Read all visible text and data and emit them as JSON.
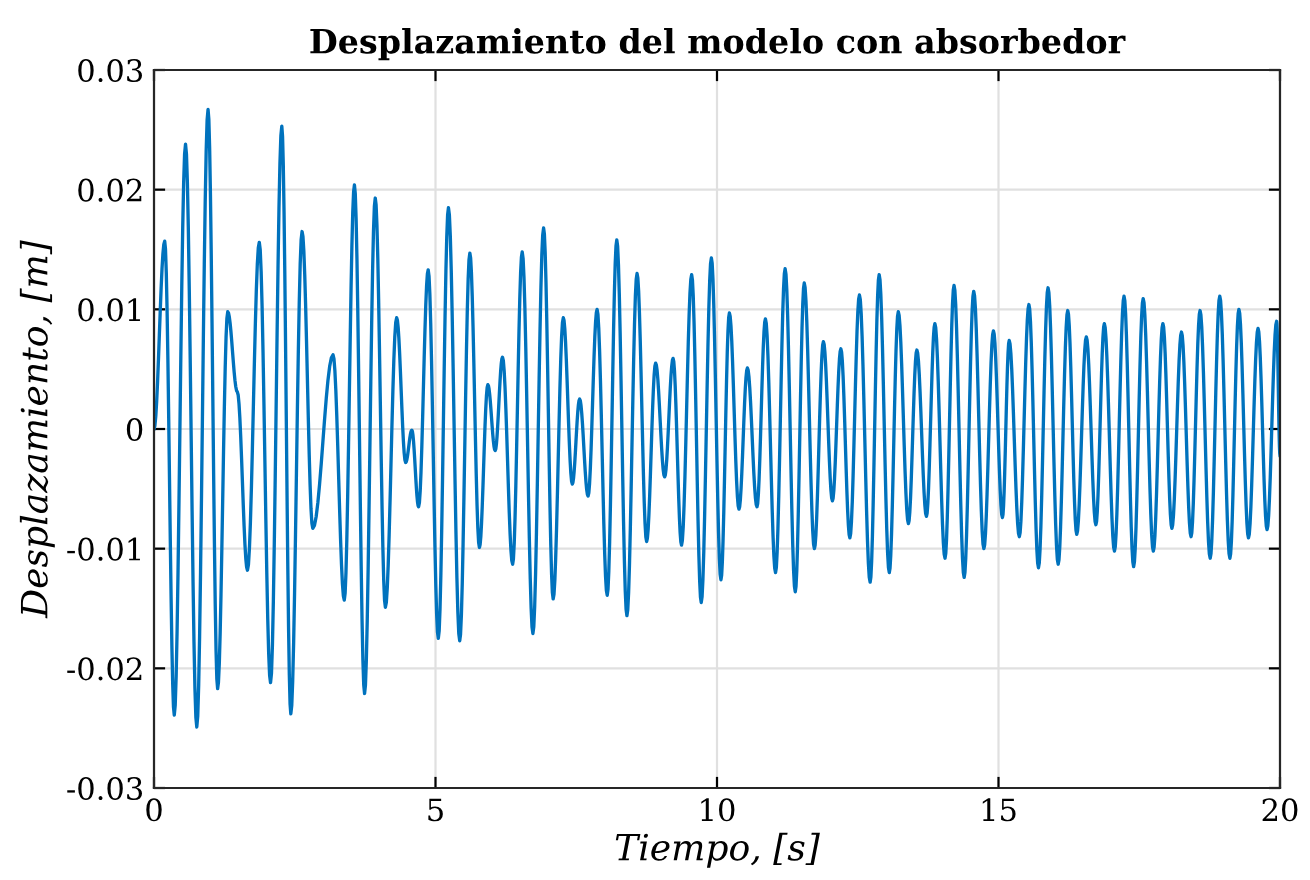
{
  "chart_data": {
    "type": "line",
    "title": "Desplazamiento del modelo con absorbedor",
    "xlabel": "Tiempo, [s]",
    "ylabel": "Desplazamiento, [m]",
    "xlim": [
      0,
      20
    ],
    "ylim": [
      -0.03,
      0.03
    ],
    "xticks": [
      0,
      5,
      10,
      15,
      20
    ],
    "yticks": [
      -0.03,
      -0.02,
      -0.01,
      0,
      0.01,
      0.02,
      0.03
    ],
    "grid": true,
    "marker": "none",
    "line_style": "solid",
    "series": [
      {
        "color": "#0072bd",
        "x": [
          0,
          0.19,
          0.36,
          0.56,
          0.76,
          0.96,
          1.13,
          1.31,
          1.48,
          1.66,
          1.87,
          2.07,
          2.27,
          2.43,
          2.63,
          2.82,
          3.18,
          3.38,
          3.56,
          3.74,
          3.93,
          4.11,
          4.31,
          4.47,
          4.58,
          4.7,
          4.87,
          5.05,
          5.23,
          5.43,
          5.61,
          5.78,
          5.93,
          6.06,
          6.19,
          6.37,
          6.54,
          6.73,
          6.92,
          7.09,
          7.27,
          7.43,
          7.56,
          7.71,
          7.87,
          8.05,
          8.22,
          8.4,
          8.58,
          8.75,
          8.91,
          9.07,
          9.22,
          9.37,
          9.55,
          9.72,
          9.9,
          10.07,
          10.22,
          10.39,
          10.54,
          10.71,
          10.86,
          11.04,
          11.21,
          11.39,
          11.55,
          11.73,
          11.89,
          12.05,
          12.2,
          12.36,
          12.53,
          12.72,
          12.88,
          13.06,
          13.22,
          13.4,
          13.55,
          13.72,
          13.87,
          14.05,
          14.21,
          14.39,
          14.56,
          14.74,
          14.91,
          15.07,
          15.19,
          15.37,
          15.54,
          15.71,
          15.88,
          16.06,
          16.23,
          16.39,
          16.56,
          16.73,
          16.88,
          17.06,
          17.23,
          17.4,
          17.57,
          17.75,
          17.92,
          18.08,
          18.25,
          18.42,
          18.58,
          18.76,
          18.93,
          19.11,
          19.27,
          19.44,
          19.61,
          19.77,
          19.94,
          20
        ],
        "values": [
          0,
          0.0157,
          -0.0239,
          0.0238,
          -0.0249,
          0.0267,
          -0.0217,
          0.0098,
          0.0031,
          -0.0118,
          0.0156,
          -0.0212,
          0.0253,
          -0.0238,
          0.0165,
          -0.0083,
          0.0062,
          -0.0143,
          0.0204,
          -0.0221,
          0.0193,
          -0.0149,
          0.0093,
          -0.0028,
          -0.0001,
          -0.0065,
          0.0133,
          -0.0175,
          0.0185,
          -0.0177,
          0.0147,
          -0.0099,
          0.0037,
          -0.0018,
          0.006,
          -0.0113,
          0.0148,
          -0.0171,
          0.0168,
          -0.0142,
          0.0093,
          -0.0046,
          0.0025,
          -0.0056,
          0.01,
          -0.0139,
          0.0158,
          -0.0156,
          0.013,
          -0.0094,
          0.0055,
          -0.004,
          0.0059,
          -0.0097,
          0.0129,
          -0.0145,
          0.0143,
          -0.0126,
          0.0097,
          -0.0067,
          0.0051,
          -0.0065,
          0.0092,
          -0.012,
          0.0134,
          -0.0136,
          0.0122,
          -0.01,
          0.0073,
          -0.006,
          0.0067,
          -0.0091,
          0.0112,
          -0.0128,
          0.0129,
          -0.012,
          0.0098,
          -0.0079,
          0.0066,
          -0.0073,
          0.0088,
          -0.0108,
          0.012,
          -0.0124,
          0.0115,
          -0.01,
          0.0082,
          -0.0074,
          0.0074,
          -0.009,
          0.0104,
          -0.0116,
          0.0118,
          -0.0113,
          0.0099,
          -0.0088,
          0.0077,
          -0.008,
          0.0088,
          -0.0102,
          0.0111,
          -0.0115,
          0.0109,
          -0.0102,
          0.0088,
          -0.0083,
          0.0081,
          -0.009,
          0.0099,
          -0.0108,
          0.0111,
          -0.0108,
          0.01,
          -0.0091,
          0.0084,
          -0.0084,
          0.009,
          -0.0022
        ]
      }
    ]
  }
}
